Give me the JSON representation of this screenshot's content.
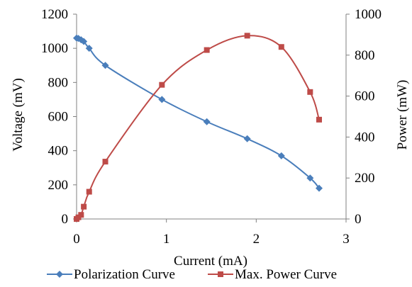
{
  "chart_data": {
    "type": "line",
    "xlabel": "Current (mA)",
    "ylabel": "Voltage (mV)",
    "y2label": "Power (mW)",
    "xlim": [
      0,
      3
    ],
    "ylim": [
      0,
      1200
    ],
    "y2lim": [
      0,
      1000
    ],
    "xticks": [
      "0",
      "1",
      "2",
      "3"
    ],
    "yticks": [
      "0",
      "200",
      "400",
      "600",
      "800",
      "1000",
      "1200"
    ],
    "y2ticks": [
      "0",
      "200",
      "400",
      "600",
      "800",
      "1000"
    ],
    "grid": false,
    "legend_position": "bottom",
    "series": [
      {
        "name": "Polarization Curve",
        "axis": "left",
        "color": "#4a7ebb",
        "marker": "diamond",
        "x": [
          0.0,
          0.02,
          0.05,
          0.08,
          0.14,
          0.32,
          0.95,
          1.45,
          1.9,
          2.28,
          2.6,
          2.7
        ],
        "y": [
          1060,
          1058,
          1050,
          1040,
          1000,
          900,
          700,
          570,
          470,
          370,
          240,
          180
        ]
      },
      {
        "name": "Max. Power Curve",
        "axis": "right",
        "color": "#be4b48",
        "marker": "square",
        "x": [
          0.0,
          0.02,
          0.05,
          0.08,
          0.14,
          0.32,
          0.95,
          1.45,
          1.9,
          2.28,
          2.6,
          2.7
        ],
        "y": [
          0,
          8,
          20,
          60,
          133,
          280,
          655,
          825,
          895,
          840,
          620,
          485
        ]
      }
    ]
  }
}
